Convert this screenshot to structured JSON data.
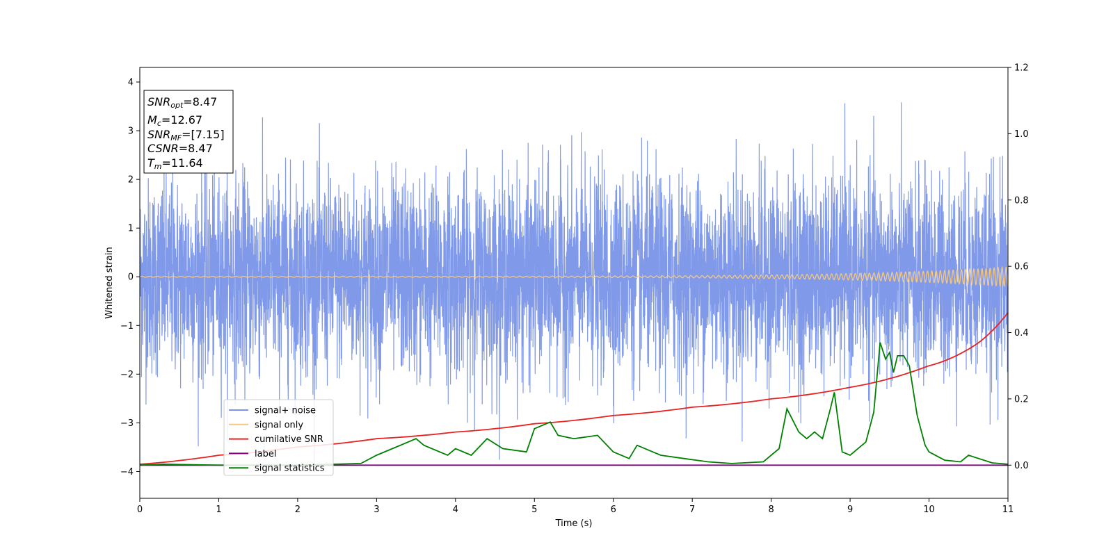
{
  "chart_data": {
    "type": "line",
    "xlabel": "Time (s)",
    "ylabel": "Whitened strain",
    "xlim": [
      0,
      11
    ],
    "ylim": [
      -4.55,
      4.3
    ],
    "y2lim": [
      -0.1,
      1.2
    ],
    "x_ticks": [
      0,
      1,
      2,
      3,
      4,
      5,
      6,
      7,
      8,
      9,
      10,
      11
    ],
    "y_ticks": [
      -4,
      -3,
      -2,
      -1,
      0,
      1,
      2,
      3,
      4
    ],
    "y2_ticks": [
      0.0,
      0.2,
      0.4,
      0.6,
      0.8,
      1.0,
      1.2
    ],
    "grid": false,
    "legend_position": "lower-left",
    "annotations": [
      {
        "var": "SNR",
        "sub": "opt",
        "value": "=8.47"
      },
      {
        "var": "M",
        "sub": "c",
        "value": "=12.67"
      },
      {
        "var": "SNR",
        "sub": "MF",
        "value": "=[7.15]"
      },
      {
        "var": "CSNR",
        "sub": "",
        "value": "=8.47"
      },
      {
        "var": "T",
        "sub": "m",
        "value": "=11.64"
      }
    ],
    "series": [
      {
        "name": "signal+ noise",
        "color": "#7994e8",
        "axis": "left",
        "kind": "noise",
        "envelope_sd": 1.0,
        "observed_range": [
          -4.2,
          3.92
        ]
      },
      {
        "name": "signal only",
        "color": "#f5c880",
        "axis": "left",
        "kind": "chirp",
        "amplitude_start": 0.01,
        "amplitude_end": 0.2
      },
      {
        "name": "cumilative SNR",
        "color": "#e82222",
        "axis": "right",
        "x": [
          0,
          1,
          2,
          3,
          4,
          5,
          6,
          7,
          8,
          9,
          10,
          10.5,
          11
        ],
        "y": [
          0.003,
          0.03,
          0.055,
          0.08,
          0.1,
          0.125,
          0.15,
          0.175,
          0.2,
          0.235,
          0.3,
          0.35,
          0.46
        ]
      },
      {
        "name": "label",
        "color": "#800080",
        "axis": "right",
        "x": [
          0,
          11
        ],
        "y": [
          0.0,
          0.0
        ]
      },
      {
        "name": "signal statistics",
        "color": "#008000",
        "axis": "right",
        "x": [
          0,
          0.3,
          1,
          2,
          2.8,
          3.0,
          3.2,
          3.5,
          3.6,
          3.9,
          4.0,
          4.2,
          4.4,
          4.6,
          4.9,
          5.0,
          5.2,
          5.3,
          5.5,
          5.8,
          6.0,
          6.2,
          6.3,
          6.6,
          6.9,
          7.2,
          7.5,
          7.9,
          8.1,
          8.2,
          8.35,
          8.45,
          8.55,
          8.65,
          8.75,
          8.8,
          8.9,
          9.0,
          9.2,
          9.3,
          9.38,
          9.45,
          9.5,
          9.55,
          9.6,
          9.68,
          9.75,
          9.85,
          9.95,
          10.0,
          10.2,
          10.4,
          10.5,
          10.8,
          11
        ],
        "y": [
          0.0,
          0.003,
          0.0,
          0.0,
          0.005,
          0.03,
          0.05,
          0.08,
          0.06,
          0.03,
          0.05,
          0.03,
          0.08,
          0.05,
          0.04,
          0.11,
          0.13,
          0.09,
          0.08,
          0.09,
          0.04,
          0.02,
          0.06,
          0.03,
          0.02,
          0.01,
          0.005,
          0.01,
          0.05,
          0.17,
          0.1,
          0.08,
          0.1,
          0.08,
          0.17,
          0.22,
          0.04,
          0.03,
          0.07,
          0.16,
          0.37,
          0.32,
          0.34,
          0.28,
          0.33,
          0.33,
          0.3,
          0.15,
          0.06,
          0.04,
          0.015,
          0.01,
          0.03,
          0.007,
          0.003
        ]
      }
    ]
  }
}
